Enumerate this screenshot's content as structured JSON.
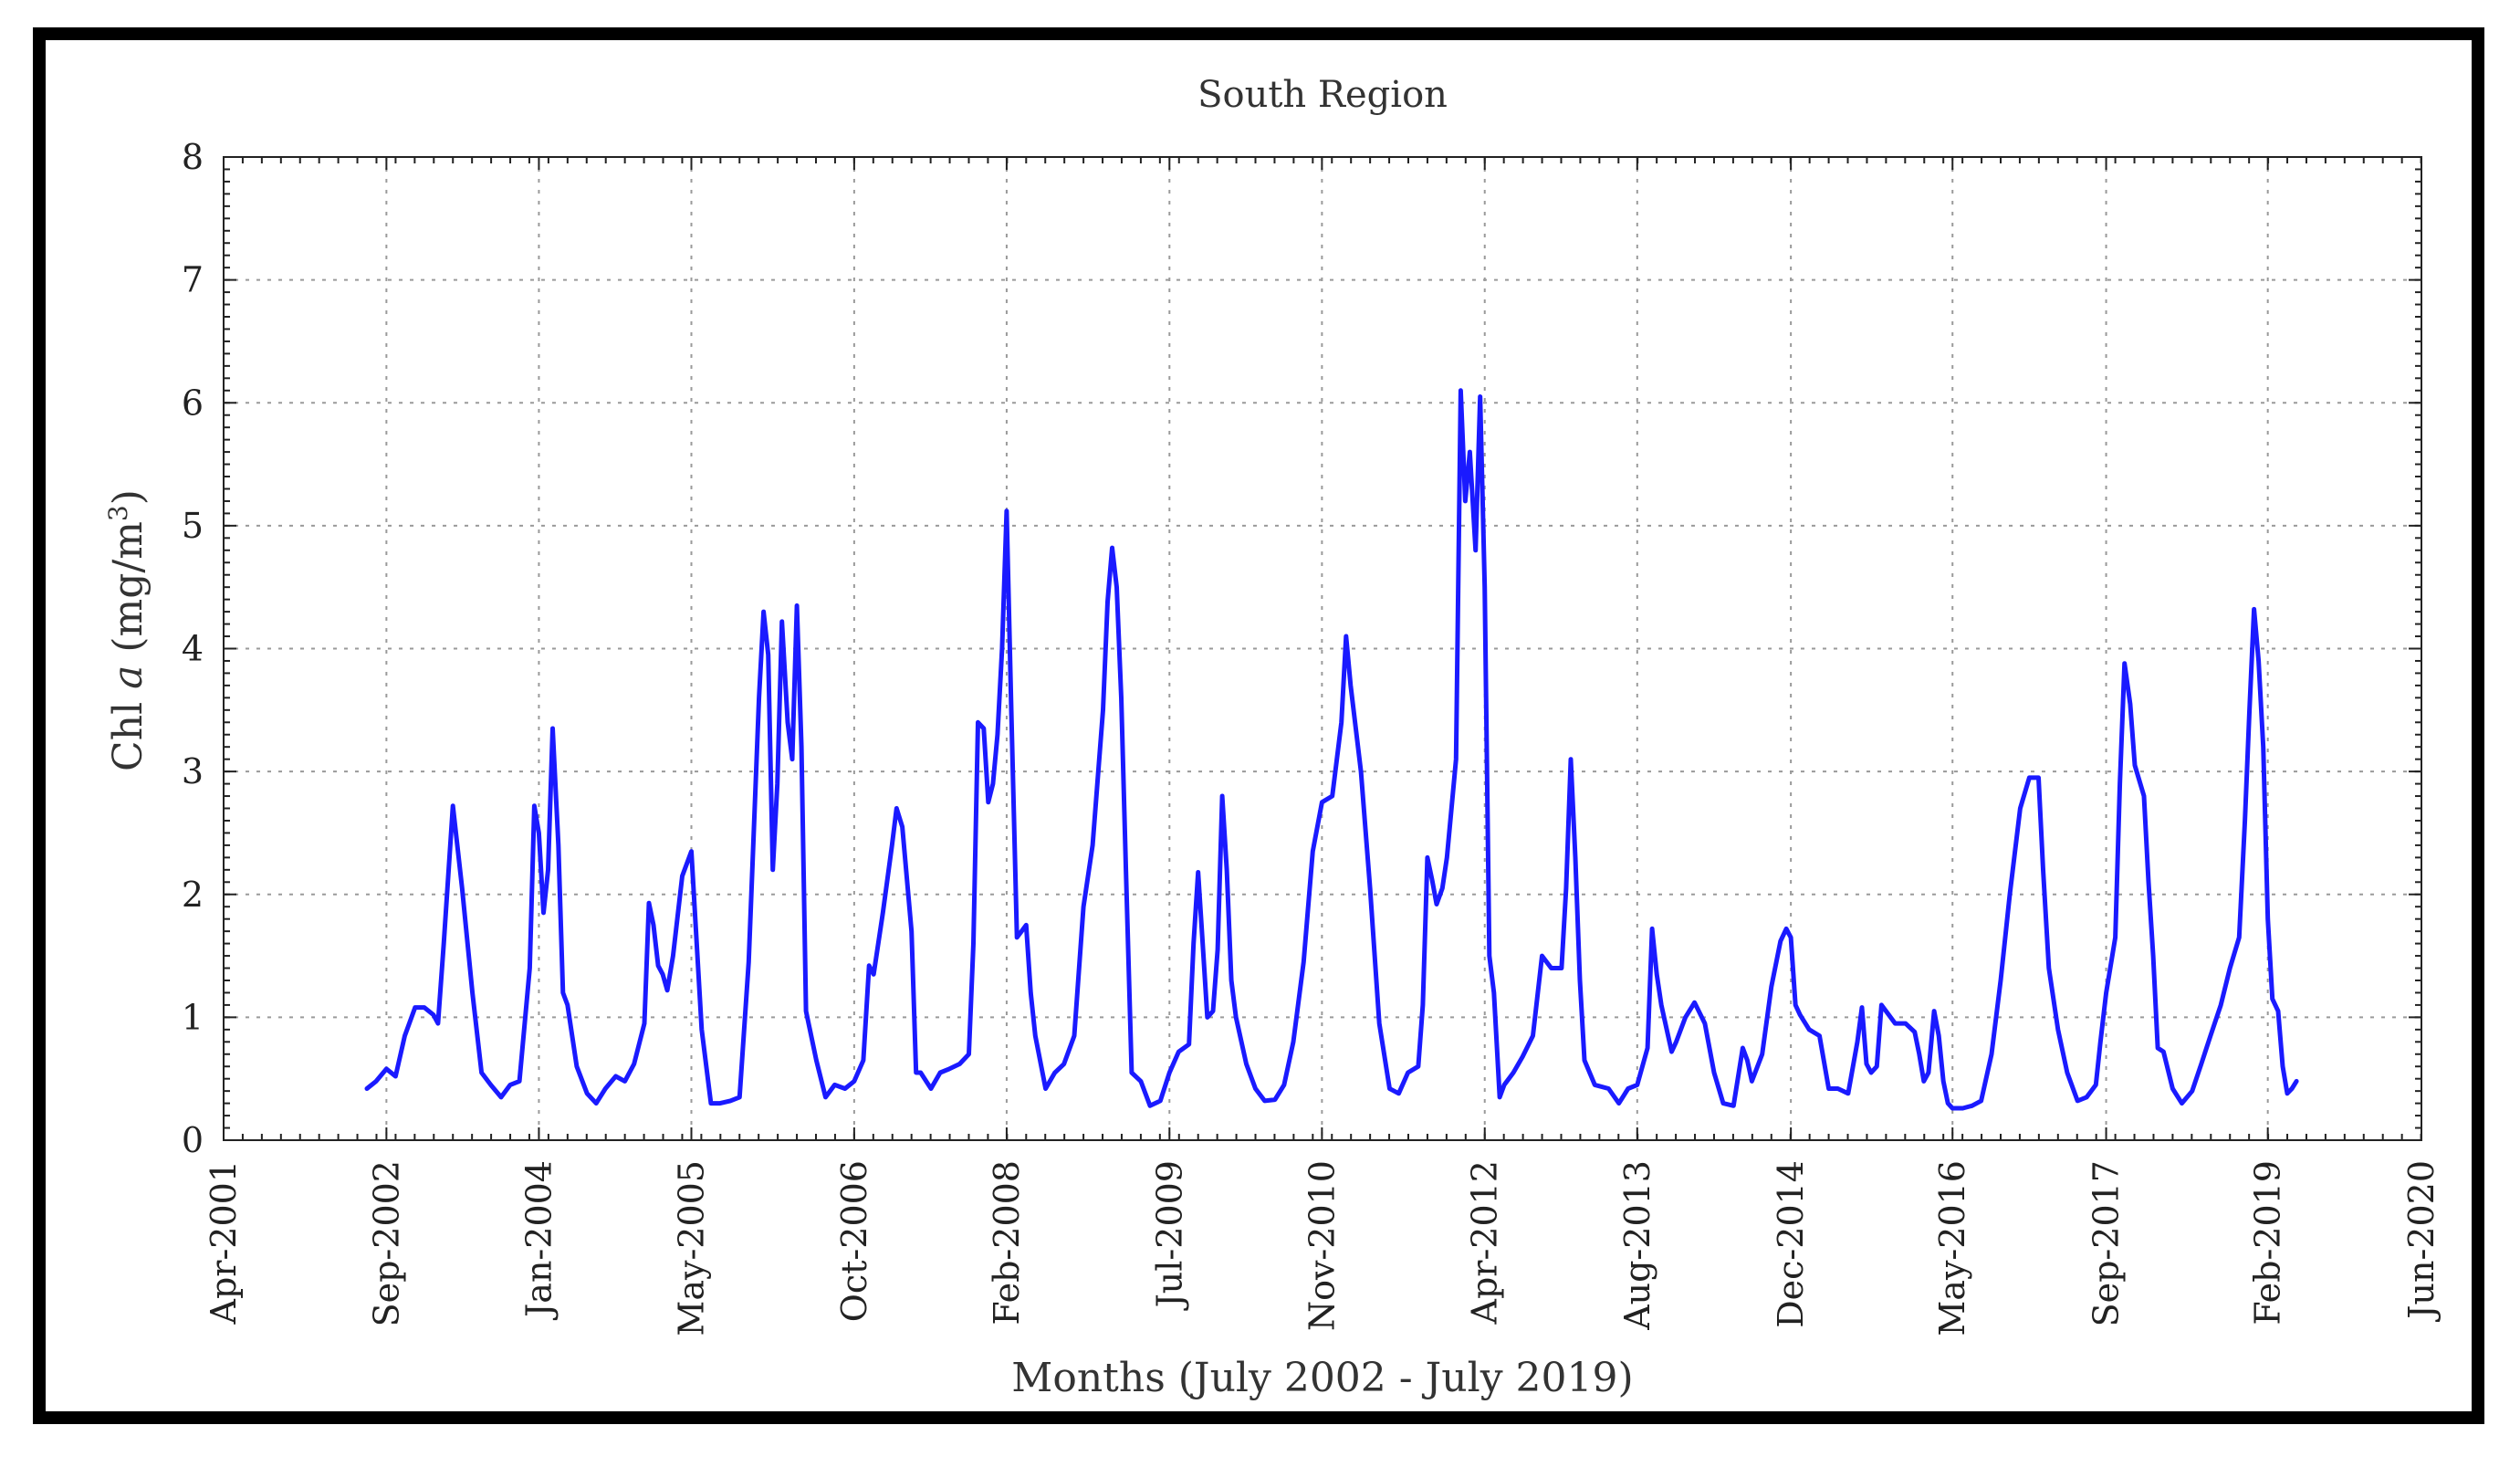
{
  "chart_data": {
    "type": "line",
    "title": "South Region",
    "xlabel": "Months (July 2002 - July 2019)",
    "ylabel_main": "Chl ",
    "ylabel_italic": "a",
    "ylabel_unit": " (mg/m",
    "ylabel_sup": "3",
    "ylabel_close": ")",
    "ylim": [
      0,
      8
    ],
    "yticks": [
      "0",
      "1",
      "2",
      "3",
      "4",
      "5",
      "6",
      "7",
      "8"
    ],
    "xlim": [
      2001.25,
      2020.42
    ],
    "xticks": [
      {
        "label": "Apr-2001",
        "x": 2001.25
      },
      {
        "label": "Sep-2002",
        "x": 2002.67
      },
      {
        "label": "Jan-2004",
        "x": 2004.0
      },
      {
        "label": "May-2005",
        "x": 2005.33
      },
      {
        "label": "Oct-2006",
        "x": 2006.75
      },
      {
        "label": "Feb-2008",
        "x": 2008.08
      },
      {
        "label": "Jul-2009",
        "x": 2009.5
      },
      {
        "label": "Nov-2010",
        "x": 2010.83
      },
      {
        "label": "Apr-2012",
        "x": 2012.25
      },
      {
        "label": "Aug-2013",
        "x": 2013.58
      },
      {
        "label": "Dec-2014",
        "x": 2014.92
      },
      {
        "label": "May-2016",
        "x": 2016.33
      },
      {
        "label": "Sep-2017",
        "x": 2017.67
      },
      {
        "label": "Feb-2019",
        "x": 2019.08
      },
      {
        "label": "Jun-2020",
        "x": 2020.42
      }
    ],
    "grid": true,
    "series": [
      {
        "name": "South Region Chl a",
        "color": "#1a1aff",
        "points": [
          [
            2002.5,
            0.42
          ],
          [
            2002.58,
            0.48
          ],
          [
            2002.67,
            0.58
          ],
          [
            2002.75,
            0.52
          ],
          [
            2002.83,
            0.85
          ],
          [
            2002.92,
            1.08
          ],
          [
            2003.0,
            1.08
          ],
          [
            2003.08,
            1.02
          ],
          [
            2003.12,
            0.95
          ],
          [
            2003.17,
            1.6
          ],
          [
            2003.25,
            2.72
          ],
          [
            2003.33,
            2.05
          ],
          [
            2003.42,
            1.2
          ],
          [
            2003.5,
            0.55
          ],
          [
            2003.58,
            0.45
          ],
          [
            2003.67,
            0.35
          ],
          [
            2003.75,
            0.45
          ],
          [
            2003.83,
            0.48
          ],
          [
            2003.92,
            1.4
          ],
          [
            2003.96,
            2.72
          ],
          [
            2004.0,
            2.5
          ],
          [
            2004.04,
            1.85
          ],
          [
            2004.08,
            2.2
          ],
          [
            2004.12,
            3.35
          ],
          [
            2004.17,
            2.4
          ],
          [
            2004.21,
            1.2
          ],
          [
            2004.25,
            1.1
          ],
          [
            2004.33,
            0.6
          ],
          [
            2004.42,
            0.38
          ],
          [
            2004.5,
            0.3
          ],
          [
            2004.58,
            0.42
          ],
          [
            2004.67,
            0.52
          ],
          [
            2004.75,
            0.48
          ],
          [
            2004.83,
            0.62
          ],
          [
            2004.92,
            0.95
          ],
          [
            2004.96,
            1.93
          ],
          [
            2005.0,
            1.75
          ],
          [
            2005.04,
            1.42
          ],
          [
            2005.08,
            1.35
          ],
          [
            2005.12,
            1.22
          ],
          [
            2005.17,
            1.5
          ],
          [
            2005.25,
            2.15
          ],
          [
            2005.33,
            2.35
          ],
          [
            2005.42,
            0.9
          ],
          [
            2005.5,
            0.3
          ],
          [
            2005.58,
            0.3
          ],
          [
            2005.67,
            0.32
          ],
          [
            2005.75,
            0.35
          ],
          [
            2005.83,
            1.45
          ],
          [
            2005.92,
            3.6
          ],
          [
            2005.96,
            4.3
          ],
          [
            2006.0,
            3.95
          ],
          [
            2006.04,
            2.2
          ],
          [
            2006.08,
            2.9
          ],
          [
            2006.12,
            4.22
          ],
          [
            2006.17,
            3.4
          ],
          [
            2006.21,
            3.1
          ],
          [
            2006.25,
            4.35
          ],
          [
            2006.29,
            3.2
          ],
          [
            2006.33,
            1.05
          ],
          [
            2006.42,
            0.65
          ],
          [
            2006.5,
            0.35
          ],
          [
            2006.58,
            0.45
          ],
          [
            2006.67,
            0.42
          ],
          [
            2006.75,
            0.48
          ],
          [
            2006.83,
            0.65
          ],
          [
            2006.88,
            1.42
          ],
          [
            2006.92,
            1.35
          ],
          [
            2007.0,
            1.85
          ],
          [
            2007.08,
            2.4
          ],
          [
            2007.12,
            2.7
          ],
          [
            2007.17,
            2.55
          ],
          [
            2007.25,
            1.7
          ],
          [
            2007.29,
            0.55
          ],
          [
            2007.33,
            0.55
          ],
          [
            2007.42,
            0.42
          ],
          [
            2007.5,
            0.55
          ],
          [
            2007.58,
            0.58
          ],
          [
            2007.67,
            0.62
          ],
          [
            2007.75,
            0.7
          ],
          [
            2007.79,
            1.6
          ],
          [
            2007.83,
            3.4
          ],
          [
            2007.88,
            3.35
          ],
          [
            2007.92,
            2.75
          ],
          [
            2007.96,
            2.9
          ],
          [
            2008.0,
            3.3
          ],
          [
            2008.04,
            4.0
          ],
          [
            2008.08,
            5.12
          ],
          [
            2008.12,
            3.5
          ],
          [
            2008.17,
            1.65
          ],
          [
            2008.21,
            1.7
          ],
          [
            2008.25,
            1.75
          ],
          [
            2008.29,
            1.2
          ],
          [
            2008.33,
            0.85
          ],
          [
            2008.42,
            0.42
          ],
          [
            2008.5,
            0.55
          ],
          [
            2008.58,
            0.62
          ],
          [
            2008.67,
            0.85
          ],
          [
            2008.75,
            1.9
          ],
          [
            2008.83,
            2.4
          ],
          [
            2008.92,
            3.5
          ],
          [
            2008.96,
            4.38
          ],
          [
            2009.0,
            4.82
          ],
          [
            2009.04,
            4.5
          ],
          [
            2009.08,
            3.6
          ],
          [
            2009.12,
            2.2
          ],
          [
            2009.17,
            0.55
          ],
          [
            2009.25,
            0.48
          ],
          [
            2009.33,
            0.28
          ],
          [
            2009.42,
            0.32
          ],
          [
            2009.5,
            0.55
          ],
          [
            2009.58,
            0.72
          ],
          [
            2009.67,
            0.78
          ],
          [
            2009.71,
            1.6
          ],
          [
            2009.75,
            2.18
          ],
          [
            2009.79,
            1.6
          ],
          [
            2009.83,
            1.0
          ],
          [
            2009.88,
            1.05
          ],
          [
            2009.92,
            1.55
          ],
          [
            2009.96,
            2.8
          ],
          [
            2010.0,
            2.2
          ],
          [
            2010.04,
            1.3
          ],
          [
            2010.08,
            1.0
          ],
          [
            2010.17,
            0.62
          ],
          [
            2010.25,
            0.42
          ],
          [
            2010.33,
            0.32
          ],
          [
            2010.42,
            0.33
          ],
          [
            2010.5,
            0.45
          ],
          [
            2010.58,
            0.8
          ],
          [
            2010.67,
            1.45
          ],
          [
            2010.75,
            2.35
          ],
          [
            2010.83,
            2.75
          ],
          [
            2010.92,
            2.8
          ],
          [
            2011.0,
            3.4
          ],
          [
            2011.04,
            4.1
          ],
          [
            2011.08,
            3.7
          ],
          [
            2011.17,
            3.0
          ],
          [
            2011.25,
            2.05
          ],
          [
            2011.33,
            0.95
          ],
          [
            2011.42,
            0.42
          ],
          [
            2011.5,
            0.38
          ],
          [
            2011.58,
            0.55
          ],
          [
            2011.67,
            0.6
          ],
          [
            2011.71,
            1.1
          ],
          [
            2011.75,
            2.3
          ],
          [
            2011.79,
            2.12
          ],
          [
            2011.83,
            1.92
          ],
          [
            2011.88,
            2.05
          ],
          [
            2011.92,
            2.3
          ],
          [
            2012.0,
            3.1
          ],
          [
            2012.04,
            6.1
          ],
          [
            2012.08,
            5.2
          ],
          [
            2012.12,
            5.6
          ],
          [
            2012.17,
            4.8
          ],
          [
            2012.21,
            6.05
          ],
          [
            2012.25,
            4.5
          ],
          [
            2012.29,
            1.5
          ],
          [
            2012.33,
            1.2
          ],
          [
            2012.38,
            0.35
          ],
          [
            2012.42,
            0.45
          ],
          [
            2012.5,
            0.55
          ],
          [
            2012.58,
            0.68
          ],
          [
            2012.67,
            0.85
          ],
          [
            2012.75,
            1.5
          ],
          [
            2012.83,
            1.4
          ],
          [
            2012.92,
            1.4
          ],
          [
            2012.96,
            2.05
          ],
          [
            2013.0,
            3.1
          ],
          [
            2013.04,
            2.3
          ],
          [
            2013.08,
            1.3
          ],
          [
            2013.12,
            0.65
          ],
          [
            2013.21,
            0.45
          ],
          [
            2013.33,
            0.42
          ],
          [
            2013.42,
            0.3
          ],
          [
            2013.5,
            0.42
          ],
          [
            2013.58,
            0.45
          ],
          [
            2013.67,
            0.75
          ],
          [
            2013.71,
            1.72
          ],
          [
            2013.75,
            1.35
          ],
          [
            2013.79,
            1.1
          ],
          [
            2013.88,
            0.72
          ],
          [
            2013.92,
            0.8
          ],
          [
            2014.0,
            1.0
          ],
          [
            2014.08,
            1.12
          ],
          [
            2014.17,
            0.95
          ],
          [
            2014.25,
            0.55
          ],
          [
            2014.33,
            0.3
          ],
          [
            2014.42,
            0.28
          ],
          [
            2014.5,
            0.75
          ],
          [
            2014.54,
            0.65
          ],
          [
            2014.58,
            0.48
          ],
          [
            2014.67,
            0.7
          ],
          [
            2014.75,
            1.25
          ],
          [
            2014.83,
            1.62
          ],
          [
            2014.88,
            1.72
          ],
          [
            2014.92,
            1.65
          ],
          [
            2014.96,
            1.1
          ],
          [
            2015.0,
            1.02
          ],
          [
            2015.08,
            0.9
          ],
          [
            2015.17,
            0.85
          ],
          [
            2015.25,
            0.42
          ],
          [
            2015.33,
            0.42
          ],
          [
            2015.42,
            0.38
          ],
          [
            2015.5,
            0.8
          ],
          [
            2015.54,
            1.08
          ],
          [
            2015.58,
            0.62
          ],
          [
            2015.62,
            0.55
          ],
          [
            2015.67,
            0.6
          ],
          [
            2015.71,
            1.1
          ],
          [
            2015.75,
            1.05
          ],
          [
            2015.83,
            0.95
          ],
          [
            2015.92,
            0.95
          ],
          [
            2016.0,
            0.88
          ],
          [
            2016.04,
            0.7
          ],
          [
            2016.08,
            0.48
          ],
          [
            2016.12,
            0.55
          ],
          [
            2016.17,
            1.05
          ],
          [
            2016.21,
            0.85
          ],
          [
            2016.25,
            0.48
          ],
          [
            2016.29,
            0.3
          ],
          [
            2016.33,
            0.26
          ],
          [
            2016.42,
            0.26
          ],
          [
            2016.5,
            0.28
          ],
          [
            2016.58,
            0.32
          ],
          [
            2016.67,
            0.7
          ],
          [
            2016.75,
            1.3
          ],
          [
            2016.83,
            2.0
          ],
          [
            2016.92,
            2.7
          ],
          [
            2017.0,
            2.95
          ],
          [
            2017.08,
            2.95
          ],
          [
            2017.12,
            2.2
          ],
          [
            2017.17,
            1.4
          ],
          [
            2017.25,
            0.9
          ],
          [
            2017.33,
            0.55
          ],
          [
            2017.42,
            0.32
          ],
          [
            2017.5,
            0.35
          ],
          [
            2017.58,
            0.45
          ],
          [
            2017.62,
            0.8
          ],
          [
            2017.67,
            1.2
          ],
          [
            2017.75,
            1.65
          ],
          [
            2017.79,
            2.9
          ],
          [
            2017.83,
            3.88
          ],
          [
            2017.88,
            3.55
          ],
          [
            2017.92,
            3.05
          ],
          [
            2018.0,
            2.8
          ],
          [
            2018.04,
            2.1
          ],
          [
            2018.08,
            1.5
          ],
          [
            2018.12,
            0.75
          ],
          [
            2018.17,
            0.72
          ],
          [
            2018.25,
            0.42
          ],
          [
            2018.33,
            0.3
          ],
          [
            2018.42,
            0.4
          ],
          [
            2018.5,
            0.62
          ],
          [
            2018.58,
            0.85
          ],
          [
            2018.67,
            1.1
          ],
          [
            2018.75,
            1.4
          ],
          [
            2018.83,
            1.65
          ],
          [
            2018.88,
            2.6
          ],
          [
            2018.92,
            3.5
          ],
          [
            2018.96,
            4.32
          ],
          [
            2019.0,
            3.9
          ],
          [
            2019.04,
            3.2
          ],
          [
            2019.08,
            1.8
          ],
          [
            2019.12,
            1.15
          ],
          [
            2019.17,
            1.05
          ],
          [
            2019.21,
            0.6
          ],
          [
            2019.25,
            0.38
          ],
          [
            2019.29,
            0.42
          ],
          [
            2019.33,
            0.48
          ]
        ]
      }
    ]
  }
}
